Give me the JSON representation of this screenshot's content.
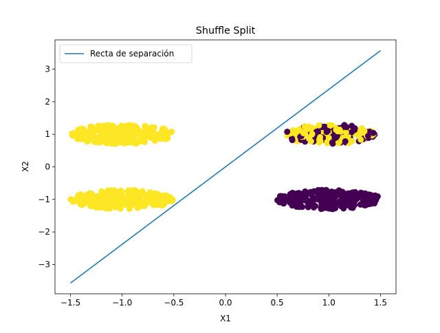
{
  "chart_data": {
    "type": "scatter",
    "title": "Shuffle Split",
    "xlabel": "X1",
    "ylabel": "X2",
    "xlim": [
      -1.65,
      1.65
    ],
    "ylim": [
      -3.9,
      3.9
    ],
    "xticks": [
      -1.5,
      -1.0,
      -0.5,
      0.0,
      0.5,
      1.0,
      1.5
    ],
    "xtick_labels": [
      "−1.5",
      "−1.0",
      "−0.5",
      "0.0",
      "0.5",
      "1.0",
      "1.5"
    ],
    "yticks": [
      -3,
      -2,
      -1,
      0,
      1,
      2,
      3
    ],
    "ytick_labels": [
      "−3",
      "−2",
      "−1",
      "0",
      "1",
      "2",
      "3"
    ],
    "grid": false,
    "legend": {
      "position": "top-left",
      "entries": [
        "Recta de separación"
      ]
    },
    "colors": {
      "line": "#1f77b4",
      "class_yellow": "#fde725",
      "class_purple": "#440154"
    },
    "line": {
      "name": "Recta de separación",
      "x": [
        -1.5,
        1.5
      ],
      "y": [
        -3.57,
        3.57
      ]
    },
    "clusters": [
      {
        "name": "upper-left",
        "center": [
          -1.0,
          1.0
        ],
        "spread": [
          0.5,
          0.3
        ],
        "color": "class_yellow",
        "mix": 0,
        "count": 260
      },
      {
        "name": "lower-left",
        "center": [
          -1.0,
          -1.0
        ],
        "spread": [
          0.5,
          0.3
        ],
        "color": "class_yellow",
        "mix": 0,
        "count": 260
      },
      {
        "name": "upper-right",
        "center": [
          1.0,
          1.0
        ],
        "spread": [
          0.45,
          0.3
        ],
        "color": "class_purple",
        "mix": 0.5,
        "count": 200
      },
      {
        "name": "lower-right",
        "center": [
          1.0,
          -1.0
        ],
        "spread": [
          0.5,
          0.3
        ],
        "color": "class_purple",
        "mix": 0,
        "count": 260
      }
    ]
  }
}
